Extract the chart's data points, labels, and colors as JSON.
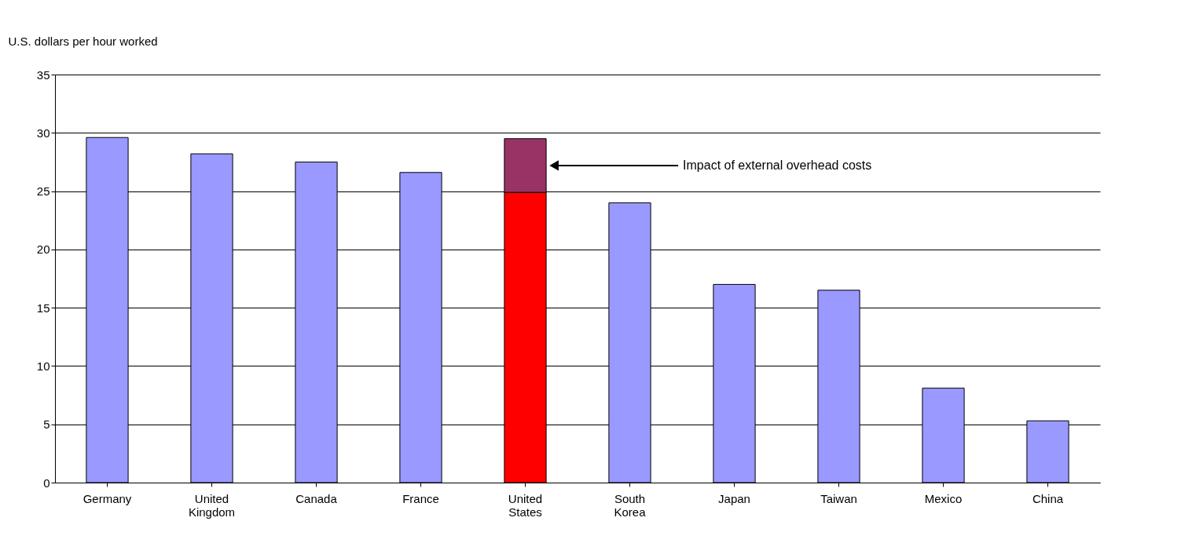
{
  "chart_data": {
    "type": "bar",
    "stacked": true,
    "ylabel": "U.S. dollars per hour worked",
    "categories": [
      "Germany",
      "United Kingdom",
      "Canada",
      "France",
      "United States",
      "South Korea",
      "Japan",
      "Taiwan",
      "Mexico",
      "China"
    ],
    "series": [
      {
        "values": [
          29.6,
          28.2,
          27.5,
          26.6,
          24.9,
          24.0,
          17.0,
          16.5,
          8.1,
          5.3
        ],
        "colors": [
          "#9999ff",
          "#9999ff",
          "#9999ff",
          "#9999ff",
          "#ff0000",
          "#9999ff",
          "#9999ff",
          "#9999ff",
          "#9999ff",
          "#9999ff"
        ]
      },
      {
        "values": [
          null,
          null,
          null,
          null,
          4.6,
          null,
          null,
          null,
          null,
          null
        ],
        "color": "#993366"
      }
    ],
    "ylim": [
      0,
      35
    ],
    "yticks": [
      0,
      5,
      10,
      15,
      20,
      25,
      30,
      35
    ],
    "grid": "y",
    "annotations": [
      "Impact of external overhead costs"
    ]
  }
}
